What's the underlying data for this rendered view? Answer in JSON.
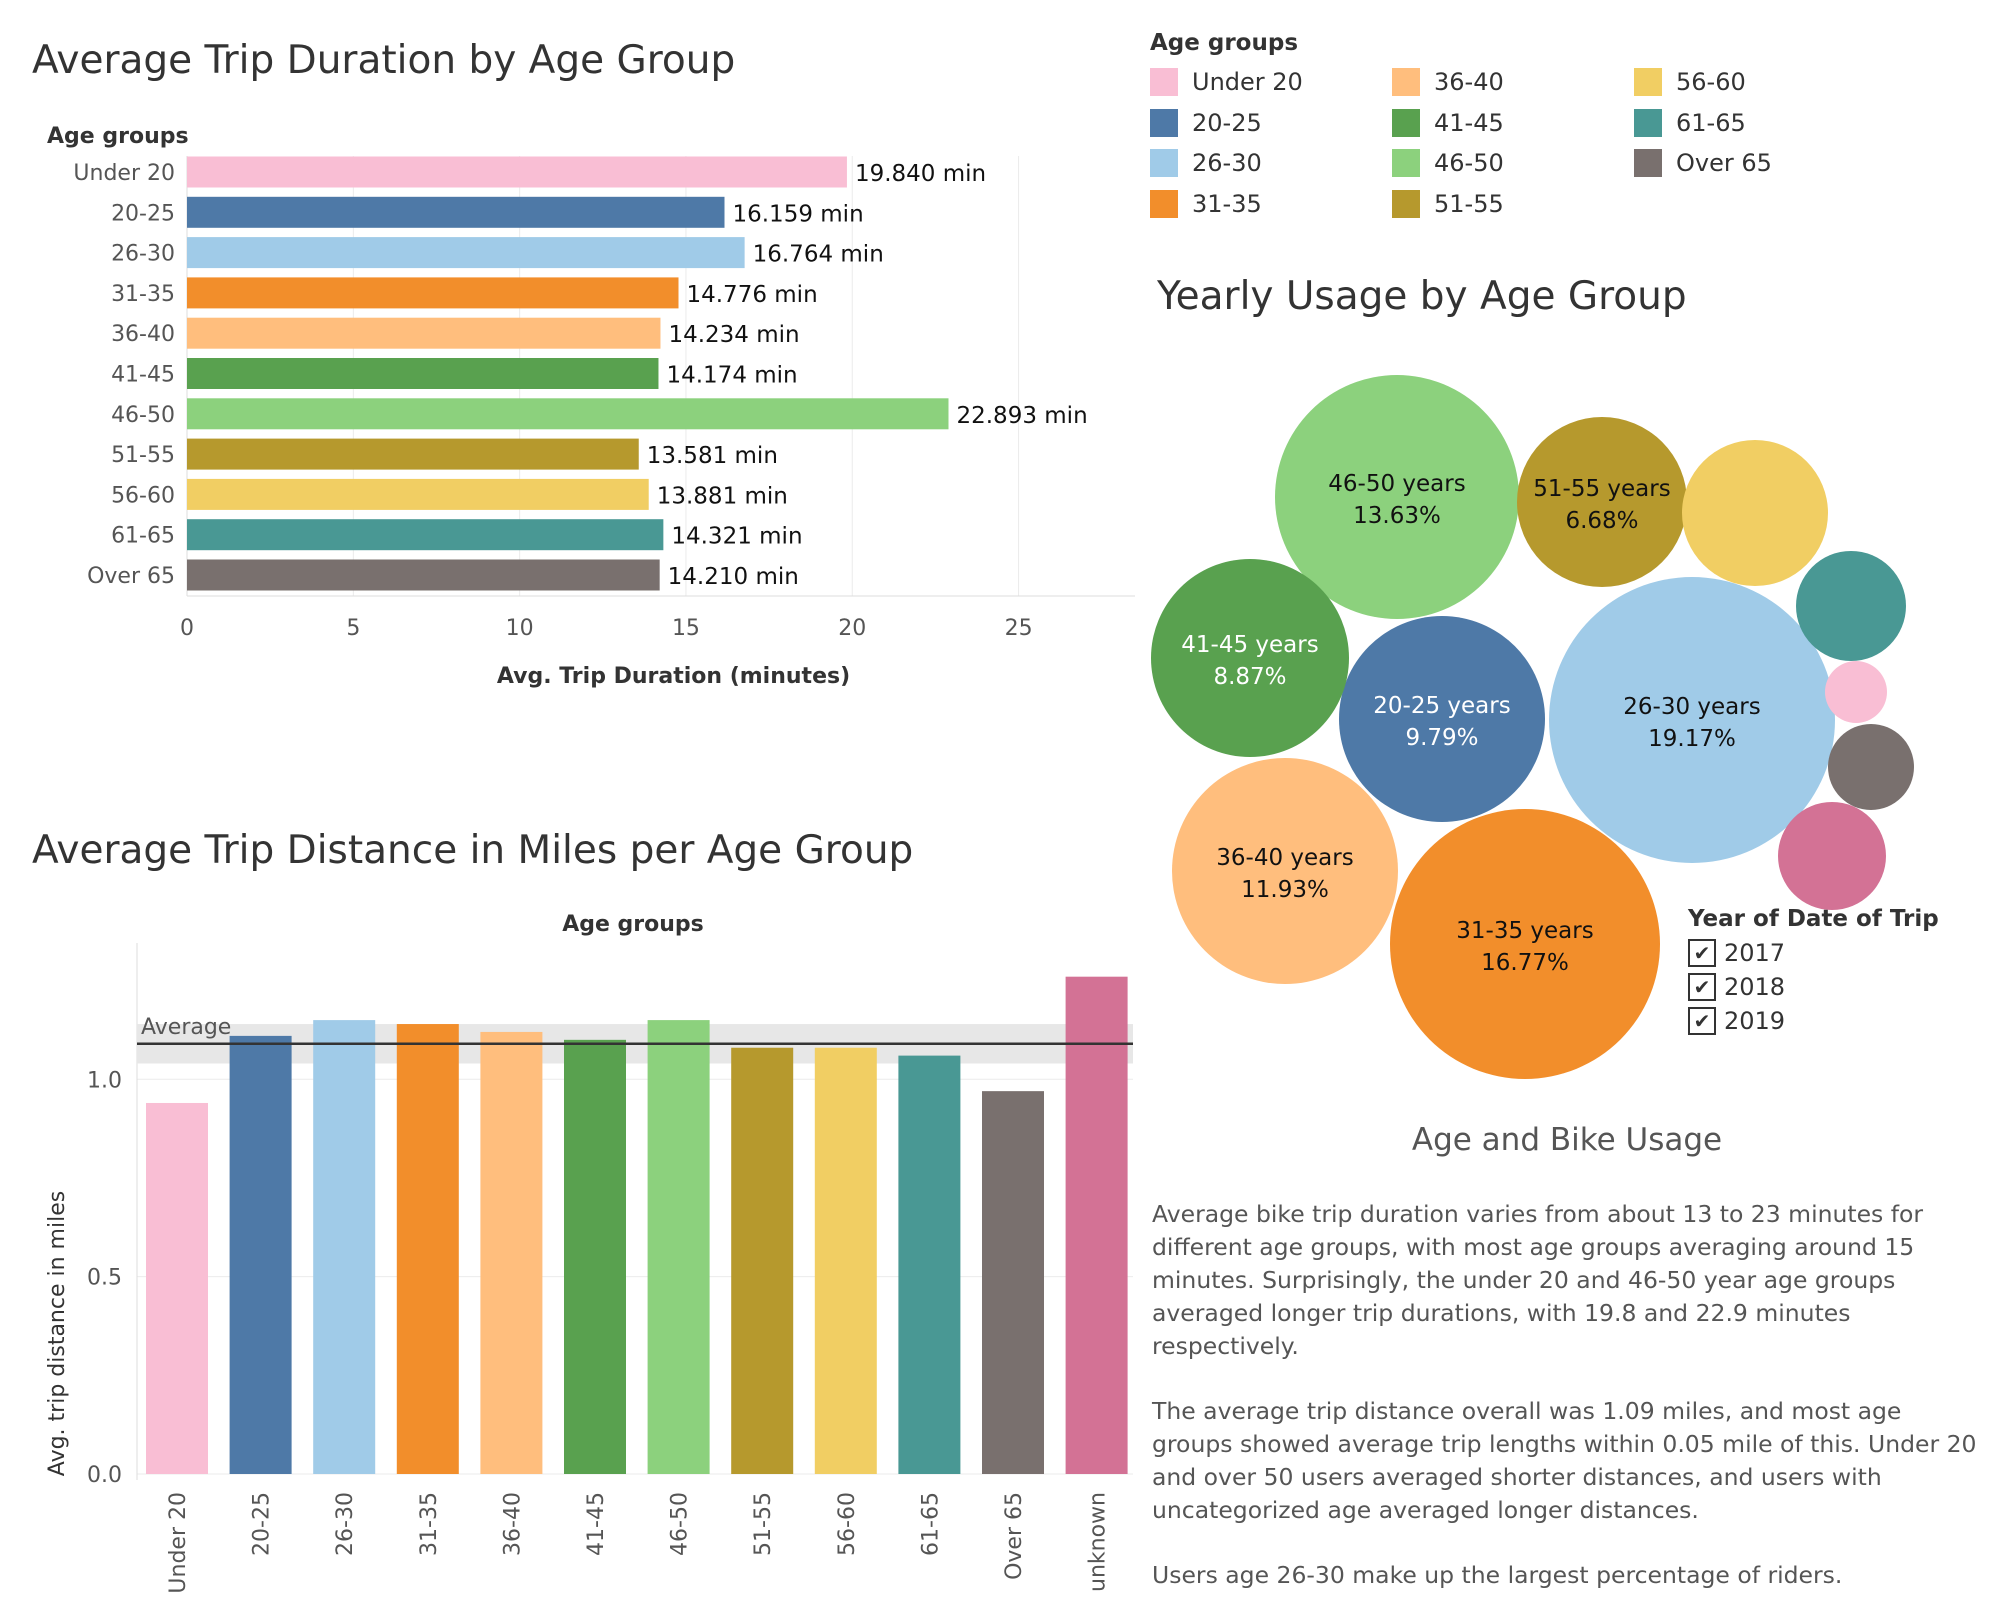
{
  "colors": {
    "Under 20": "#f9bed4",
    "20-25": "#4e79a7",
    "26-30": "#a0cbe8",
    "31-35": "#f28e2b",
    "36-40": "#ffbe7d",
    "41-45": "#59a14f",
    "46-50": "#8cd17d",
    "51-55": "#b6992d",
    "56-60": "#f1ce63",
    "61-65": "#499894",
    "Over 65": "#79706e",
    "unknown": "#d37295"
  },
  "duration_chart": {
    "value_suffix": " min"
  },
  "legend": {
    "title": "Age groups",
    "items": [
      "Under 20",
      "20-25",
      "26-30",
      "31-35",
      "36-40",
      "41-45",
      "46-50",
      "51-55",
      "56-60",
      "61-65",
      "Over 65"
    ]
  },
  "usage_chart": {
    "label_suffix": " years"
  },
  "year_filter": {
    "title": "Year of Date of Trip",
    "options": [
      {
        "label": "2017",
        "checked": true
      },
      {
        "label": "2018",
        "checked": true
      },
      {
        "label": "2019",
        "checked": true
      }
    ]
  },
  "summary": {
    "title": "Age and Bike Usage",
    "paragraphs": [
      "Average bike trip duration varies from about 13 to 23 minutes for different age groups, with most age groups averaging around 15 minutes. Surprisingly, the under 20 and 46-50 year age groups averaged longer trip durations, with 19.8 and 22.9 minutes respectively.",
      "The average trip distance overall was 1.09 miles, and most age groups showed average trip lengths  within 0.05 mile of this. Under 20 and over 50 users averaged shorter distances, and users with uncategorized age averaged longer distances.",
      "Users age 26-30 make up the largest percentage of riders."
    ]
  },
  "chart_data": [
    {
      "type": "bar",
      "orientation": "horizontal",
      "title": "Average Trip Duration by Age Group",
      "row_header": "Age groups",
      "xlabel": "Avg. Trip Duration (minutes)",
      "categories": [
        "Under 20",
        "20-25",
        "26-30",
        "31-35",
        "36-40",
        "41-45",
        "46-50",
        "51-55",
        "56-60",
        "61-65",
        "Over 65"
      ],
      "values": [
        19.84,
        16.159,
        16.764,
        14.776,
        14.234,
        14.174,
        22.893,
        13.581,
        13.881,
        14.321,
        14.21
      ],
      "data_labels": [
        "19.840 min",
        "16.159 min",
        "16.764 min",
        "14.776 min",
        "14.234 min",
        "14.174 min",
        "22.893 min",
        "13.581 min",
        "13.881 min",
        "14.321 min",
        "14.210 min"
      ],
      "xlim": [
        0,
        28.5
      ],
      "xticks": [
        0,
        5,
        10,
        15,
        20,
        25
      ],
      "grid": true
    },
    {
      "type": "bar",
      "title": "Average Trip Distance in Miles per Age Group",
      "header": "Age groups",
      "ylabel": "Avg. trip distance in miles",
      "categories": [
        "Under 20",
        "20-25",
        "26-30",
        "31-35",
        "36-40",
        "41-45",
        "46-50",
        "51-55",
        "56-60",
        "61-65",
        "Over 65",
        "unknown"
      ],
      "values": [
        0.94,
        1.11,
        1.15,
        1.14,
        1.12,
        1.1,
        1.15,
        1.08,
        1.08,
        1.06,
        0.97,
        1.26
      ],
      "ylim": [
        0,
        1.32
      ],
      "yticks": [
        0.0,
        0.5,
        1.0
      ],
      "ytick_labels": [
        "0.0",
        "0.5",
        "1.0"
      ],
      "reference_line": {
        "label": "Average",
        "value": 1.09,
        "band": [
          1.04,
          1.14
        ]
      },
      "grid": true
    },
    {
      "type": "packed-bubble",
      "title": "Yearly Usage by Age Group",
      "categories": [
        "26-30",
        "31-35",
        "46-50",
        "36-40",
        "20-25",
        "41-45",
        "51-55",
        "56-60",
        "unknown",
        "61-65",
        "Over 65",
        "Under 20"
      ],
      "values": [
        19.17,
        16.77,
        13.63,
        11.93,
        9.79,
        8.87,
        6.68,
        5.1,
        2.8,
        2.9,
        1.6,
        0.9
      ],
      "value_labels": [
        "19.17%",
        "16.77%",
        "13.63%",
        "11.93%",
        "9.79%",
        "8.87%",
        "6.68%",
        "",
        "",
        "",
        "",
        ""
      ]
    }
  ]
}
